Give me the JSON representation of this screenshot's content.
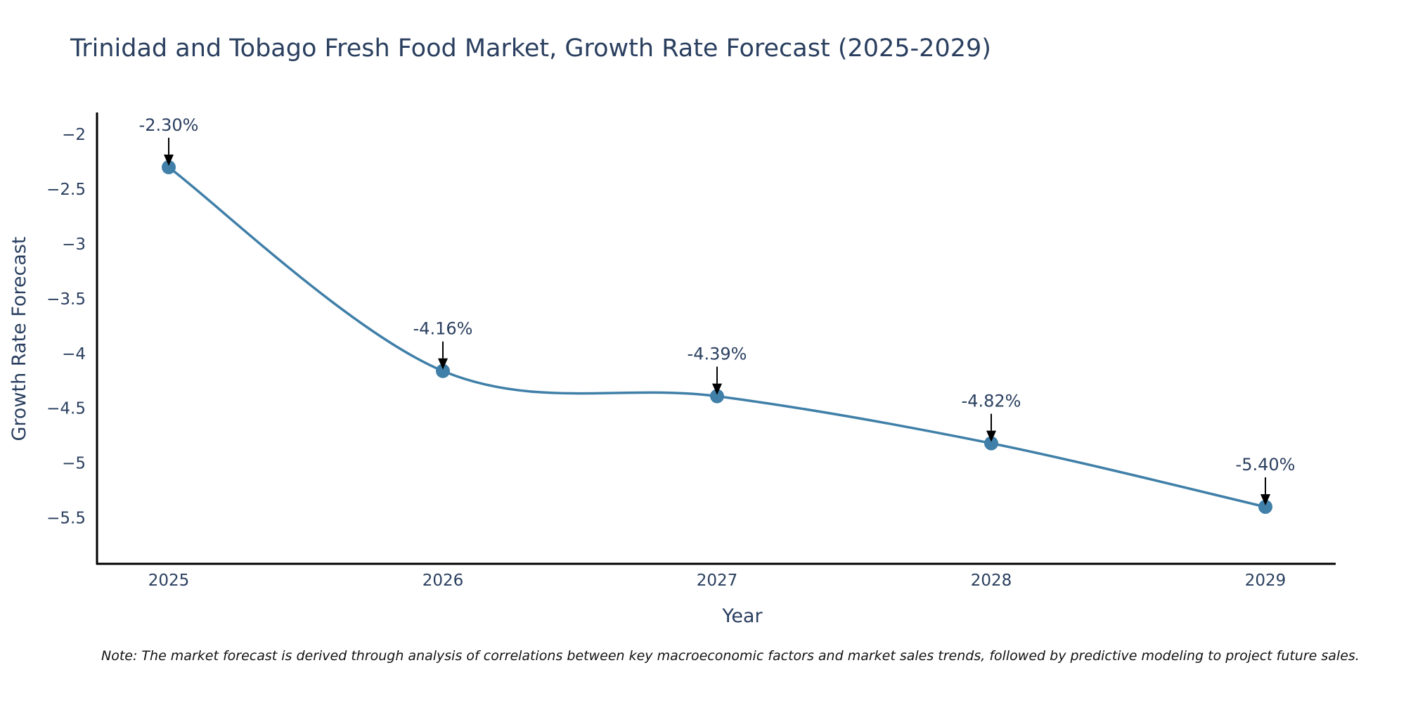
{
  "chart_data": {
    "type": "line",
    "title": "Trinidad and Tobago Fresh Food Market, Growth Rate Forecast (2025-2029)",
    "xlabel": "Year",
    "ylabel": "Growth Rate Forecast",
    "x": [
      "2025",
      "2026",
      "2027",
      "2028",
      "2029"
    ],
    "series": [
      {
        "name": "Growth Rate Forecast",
        "values": [
          -2.3,
          -4.16,
          -4.39,
          -4.82,
          -5.4
        ],
        "color": "#3f7fa8"
      }
    ],
    "annotations": [
      "-2.30%",
      "-4.16%",
      "-4.39%",
      "-4.82%",
      "-5.40%"
    ],
    "y_ticks": [
      -2,
      -2.5,
      -3,
      -3.5,
      -4,
      -4.5,
      -5,
      -5.5
    ],
    "y_tick_labels": [
      "−2",
      "−2.5",
      "−3",
      "−3.5",
      "−4",
      "−4.5",
      "−5",
      "−5.5"
    ],
    "ylim": [
      -5.92,
      -1.8
    ],
    "grid": false,
    "note": "Note: The market forecast is derived through analysis of correlations between key macroeconomic factors and market sales trends, followed by predictive modeling to project future sales."
  }
}
